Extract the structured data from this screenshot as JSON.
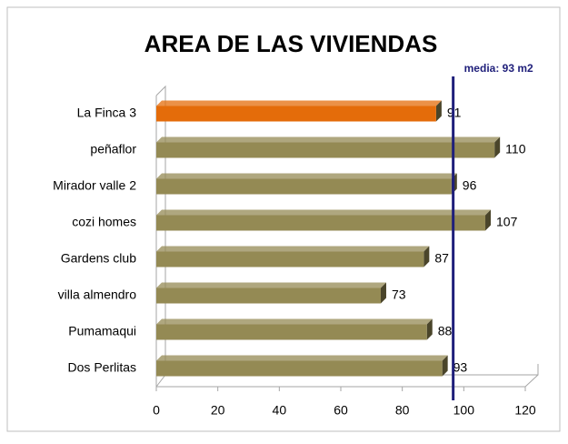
{
  "chart_data": {
    "type": "bar",
    "orientation": "horizontal",
    "title": "AREA DE LAS VIVIENDAS",
    "categories": [
      "La Finca 3",
      "peñaflor",
      "Mirador valle 2",
      "cozi homes",
      "Gardens club",
      "villa almendro",
      "Pumamaqui",
      "Dos Perlitas"
    ],
    "values": [
      91,
      110,
      96,
      107,
      87,
      73,
      88,
      93
    ],
    "colors": [
      "#e46c0a",
      "#948a54",
      "#948a54",
      "#948a54",
      "#948a54",
      "#948a54",
      "#948a54",
      "#948a54"
    ],
    "xlim": [
      0,
      120
    ],
    "xticks": [
      0,
      20,
      40,
      60,
      80,
      100,
      120
    ],
    "mean_line": {
      "value": 93,
      "label": "media: 93 m2",
      "color": "#1f1f7a"
    }
  }
}
